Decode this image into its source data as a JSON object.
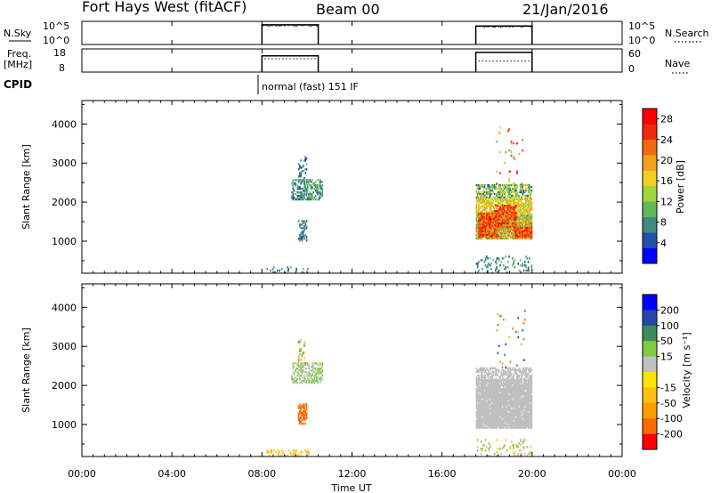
{
  "header": {
    "title_left": "Fort Hays West (fitACF)",
    "title_center": "Beam 00",
    "title_right": "21/Jan/2016"
  },
  "ops_panels": {
    "nsky": {
      "label": "N.Sky",
      "right_label": "N.Search",
      "left_ticks": [
        "10^5",
        "10^0"
      ],
      "right_ticks": [
        "10^5",
        "10^0"
      ]
    },
    "freq": {
      "label_line1": "Freq.",
      "label_line2": "[MHz]",
      "right_label": "Nave",
      "left_ticks": [
        "18",
        "8"
      ],
      "right_ticks": [
        "60",
        "0"
      ]
    },
    "cpid": {
      "label": "CPID",
      "text": "normal (fast) 151 IF"
    }
  },
  "xaxis": {
    "label": "Time UT",
    "ticks": [
      "00:00",
      "04:00",
      "08:00",
      "12:00",
      "16:00",
      "20:00",
      "00:00"
    ]
  },
  "colors": {
    "power": [
      "#0000ff",
      "#2350a8",
      "#3f8a82",
      "#63b85a",
      "#9ed63b",
      "#f0d020",
      "#f2a11c",
      "#f26a10",
      "#ee2a0a",
      "#ff0000"
    ],
    "velocity": [
      "#ff0000",
      "#ff6a00",
      "#ff9c00",
      "#ffc010",
      "#ffe400",
      "#c0c0c0",
      "#7fcd3e",
      "#3c8c5a",
      "#2646a8",
      "#0000ff"
    ]
  },
  "chart_data": [
    {
      "type": "heatmap",
      "quantity": "Power",
      "x_range_hours": [
        0,
        24
      ],
      "ylabel": "Slant Range [km]",
      "ylim": [
        180,
        4600
      ],
      "yticks": [
        1000,
        2000,
        3000,
        4000
      ],
      "colorbar": {
        "label": "Power [dB]",
        "ticks": [
          "4",
          "8",
          "12",
          "16",
          "20",
          "24",
          "28"
        ],
        "range": [
          0,
          30
        ]
      },
      "regions": [
        {
          "t": [
            8.1,
            10.1
          ],
          "r": [
            180,
            350
          ],
          "density": 0.2,
          "values": [
            4,
            10
          ]
        },
        {
          "t": [
            9.3,
            10.7
          ],
          "r": [
            2050,
            2550
          ],
          "density": 0.5,
          "values": [
            4,
            12
          ]
        },
        {
          "t": [
            9.6,
            10.0
          ],
          "r": [
            2550,
            3150
          ],
          "density": 0.2,
          "values": [
            4,
            10
          ]
        },
        {
          "t": [
            9.6,
            10.0
          ],
          "r": [
            1000,
            1500
          ],
          "density": 0.55,
          "values": [
            4,
            10
          ]
        },
        {
          "t": [
            17.5,
            20.0
          ],
          "r": [
            180,
            600
          ],
          "density": 0.15,
          "values": [
            4,
            12
          ]
        },
        {
          "t": [
            17.5,
            20.0
          ],
          "r": [
            2100,
            2450
          ],
          "density": 0.6,
          "values": [
            4,
            18
          ]
        },
        {
          "t": [
            17.5,
            20.0
          ],
          "r": [
            1650,
            2100
          ],
          "density": 0.75,
          "values": [
            12,
            20
          ]
        },
        {
          "t": [
            17.5,
            20.0
          ],
          "r": [
            1050,
            1650
          ],
          "density": 0.9,
          "values": [
            8,
            24
          ]
        },
        {
          "t": [
            17.6,
            18.5
          ],
          "r": [
            1100,
            1700
          ],
          "density": 0.85,
          "values": [
            20,
            28
          ]
        },
        {
          "t": [
            18.3,
            19.3
          ],
          "r": [
            1350,
            1900
          ],
          "density": 0.7,
          "values": [
            20,
            28
          ]
        },
        {
          "t": [
            19.2,
            20.0
          ],
          "r": [
            1100,
            1350
          ],
          "density": 0.85,
          "values": [
            20,
            28
          ]
        },
        {
          "t": [
            18.4,
            19.7
          ],
          "r": [
            2450,
            3900
          ],
          "density": 0.03,
          "values": [
            8,
            28
          ]
        }
      ]
    },
    {
      "type": "heatmap",
      "quantity": "Velocity",
      "x_range_hours": [
        0,
        24
      ],
      "ylabel": "Slant Range [km]",
      "ylim": [
        180,
        4600
      ],
      "yticks": [
        1000,
        2000,
        3000,
        4000
      ],
      "colorbar": {
        "label": "Velocity [m s⁻¹]",
        "ticks": [
          "200",
          "100",
          "50",
          "15",
          "-15",
          "-50",
          "-100",
          "-200"
        ]
      },
      "regions": [
        {
          "t": [
            8.1,
            10.1
          ],
          "r": [
            180,
            350
          ],
          "density": 0.2,
          "values": [
            -50,
            -15
          ]
        },
        {
          "t": [
            9.3,
            10.7
          ],
          "r": [
            2050,
            2550
          ],
          "density": 0.5,
          "values": [
            -15,
            50
          ]
        },
        {
          "t": [
            9.6,
            10.0
          ],
          "r": [
            2550,
            3150
          ],
          "density": 0.2,
          "values": [
            -100,
            100
          ]
        },
        {
          "t": [
            9.6,
            10.0
          ],
          "r": [
            1000,
            1500
          ],
          "density": 0.6,
          "values": [
            -200,
            -100
          ]
        },
        {
          "t": [
            17.5,
            20.0
          ],
          "r": [
            180,
            600
          ],
          "density": 0.15,
          "values": [
            -50,
            50
          ]
        },
        {
          "t": [
            17.5,
            20.0
          ],
          "r": [
            2150,
            2450
          ],
          "density": 0.55,
          "values": [
            -15,
            15
          ]
        },
        {
          "t": [
            17.5,
            20.0
          ],
          "r": [
            900,
            2150
          ],
          "density": 0.95,
          "values": [
            -15,
            15
          ]
        },
        {
          "t": [
            18.4,
            19.7
          ],
          "r": [
            2450,
            3900
          ],
          "density": 0.03,
          "values": [
            -200,
            200
          ]
        }
      ]
    }
  ],
  "ops_data": {
    "segments_hours": [
      [
        8.0,
        10.5
      ],
      [
        17.5,
        20.0
      ]
    ],
    "nsky_level": [
      0.85,
      0.8
    ],
    "freq_level": [
      0.7,
      0.85
    ],
    "nave_level": [
      0.6,
      0.5
    ]
  }
}
